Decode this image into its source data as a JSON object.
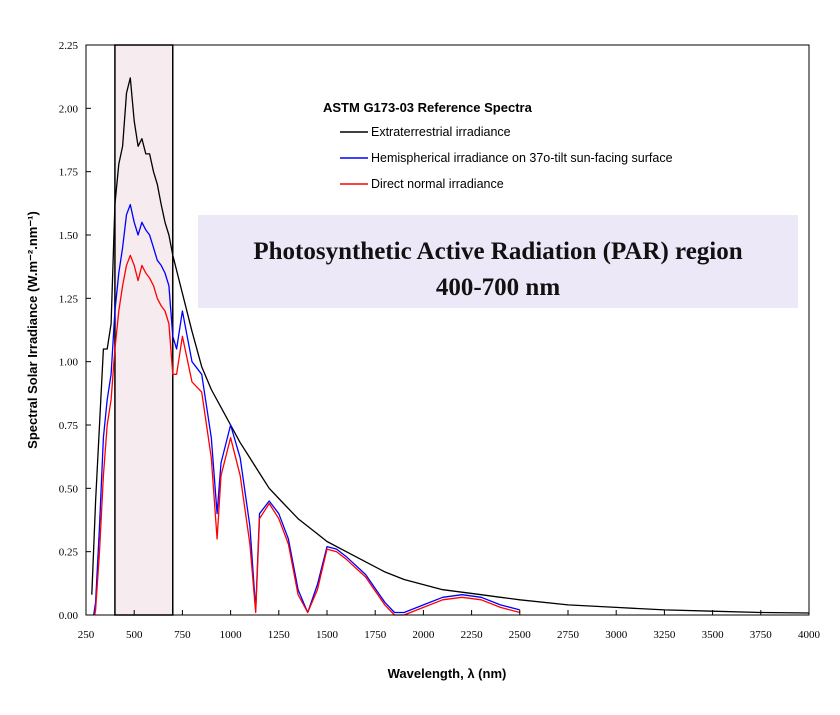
{
  "chart_data": {
    "type": "line",
    "title": "",
    "xlabel": "Wavelength, λ (nm)",
    "ylabel": "Spectral Solar Irradiance (W.m⁻².nm⁻¹)",
    "xlim": [
      250,
      4000
    ],
    "ylim": [
      0,
      2.25
    ],
    "x_ticks": [
      "250",
      "500",
      "750",
      "1000",
      "1250",
      "1500",
      "1750",
      "2000",
      "2250",
      "2500",
      "2750",
      "3000",
      "3250",
      "3500",
      "3750",
      "4000"
    ],
    "y_ticks": [
      "0.00",
      "0.25",
      "0.50",
      "0.75",
      "1.00",
      "1.25",
      "1.50",
      "1.75",
      "2.00",
      "2.25"
    ],
    "legend": {
      "title": "ASTM G173-03 Reference Spectra",
      "placement": "top-center"
    },
    "series": [
      {
        "name": "Extraterrestrial irradiance",
        "color": "#000000",
        "x": [
          280,
          300,
          320,
          340,
          360,
          380,
          400,
          420,
          440,
          460,
          480,
          500,
          520,
          540,
          560,
          580,
          600,
          620,
          640,
          660,
          680,
          700,
          750,
          800,
          850,
          900,
          950,
          1000,
          1050,
          1100,
          1150,
          1200,
          1250,
          1300,
          1350,
          1400,
          1450,
          1500,
          1600,
          1700,
          1800,
          1900,
          2000,
          2100,
          2200,
          2300,
          2400,
          2500,
          2750,
          3000,
          3250,
          3500,
          3750,
          4000
        ],
        "y": [
          0.08,
          0.45,
          0.75,
          1.05,
          1.05,
          1.15,
          1.62,
          1.78,
          1.85,
          2.06,
          2.12,
          1.95,
          1.85,
          1.88,
          1.82,
          1.82,
          1.75,
          1.7,
          1.62,
          1.55,
          1.5,
          1.42,
          1.27,
          1.12,
          0.98,
          0.89,
          0.82,
          0.75,
          0.68,
          0.62,
          0.56,
          0.5,
          0.46,
          0.42,
          0.38,
          0.35,
          0.32,
          0.29,
          0.25,
          0.21,
          0.17,
          0.14,
          0.12,
          0.1,
          0.09,
          0.08,
          0.07,
          0.06,
          0.04,
          0.03,
          0.02,
          0.015,
          0.01,
          0.008
        ]
      },
      {
        "name": "Hemispherical irradiance on 37o-tilt sun-facing surface",
        "color": "#0000ff",
        "x": [
          290,
          300,
          320,
          340,
          360,
          380,
          400,
          420,
          440,
          460,
          480,
          500,
          520,
          540,
          560,
          580,
          600,
          620,
          640,
          660,
          680,
          700,
          720,
          750,
          800,
          850,
          900,
          930,
          950,
          1000,
          1050,
          1100,
          1130,
          1150,
          1200,
          1250,
          1300,
          1350,
          1400,
          1450,
          1500,
          1550,
          1600,
          1700,
          1800,
          1850,
          1900,
          2000,
          2100,
          2200,
          2300,
          2400,
          2500
        ],
        "y": [
          0.0,
          0.05,
          0.35,
          0.7,
          0.85,
          0.95,
          1.2,
          1.35,
          1.45,
          1.58,
          1.62,
          1.55,
          1.5,
          1.55,
          1.52,
          1.5,
          1.45,
          1.4,
          1.38,
          1.35,
          1.3,
          1.1,
          1.05,
          1.2,
          1.0,
          0.95,
          0.7,
          0.4,
          0.6,
          0.75,
          0.62,
          0.35,
          0.02,
          0.4,
          0.45,
          0.4,
          0.3,
          0.1,
          0.01,
          0.12,
          0.27,
          0.26,
          0.23,
          0.16,
          0.05,
          0.01,
          0.01,
          0.04,
          0.07,
          0.08,
          0.07,
          0.04,
          0.02
        ]
      },
      {
        "name": "Direct normal irradiance",
        "color": "#ff0000",
        "x": [
          295,
          300,
          320,
          340,
          360,
          380,
          400,
          420,
          440,
          460,
          480,
          500,
          520,
          540,
          560,
          580,
          600,
          620,
          640,
          660,
          680,
          700,
          720,
          750,
          800,
          850,
          900,
          930,
          950,
          1000,
          1050,
          1100,
          1130,
          1150,
          1200,
          1250,
          1300,
          1350,
          1400,
          1450,
          1500,
          1550,
          1600,
          1700,
          1800,
          1850,
          1900,
          2000,
          2100,
          2200,
          2300,
          2400,
          2500
        ],
        "y": [
          0.0,
          0.02,
          0.25,
          0.55,
          0.75,
          0.85,
          1.05,
          1.2,
          1.3,
          1.38,
          1.42,
          1.38,
          1.32,
          1.38,
          1.35,
          1.33,
          1.3,
          1.25,
          1.22,
          1.2,
          1.15,
          0.95,
          0.95,
          1.1,
          0.92,
          0.88,
          0.62,
          0.3,
          0.55,
          0.7,
          0.55,
          0.28,
          0.01,
          0.38,
          0.44,
          0.38,
          0.28,
          0.08,
          0.01,
          0.1,
          0.26,
          0.25,
          0.22,
          0.15,
          0.04,
          0.0,
          0.0,
          0.03,
          0.06,
          0.07,
          0.06,
          0.03,
          0.01
        ]
      }
    ],
    "annotations": [
      {
        "text": "Photosynthetic Active Radiation (PAR) region"
      },
      {
        "text": "400-700 nm"
      }
    ],
    "highlight_band": {
      "x": [
        400,
        700
      ],
      "color": "#f6ebee"
    },
    "annotation_box_color": "#ede8f8",
    "grid": false
  }
}
